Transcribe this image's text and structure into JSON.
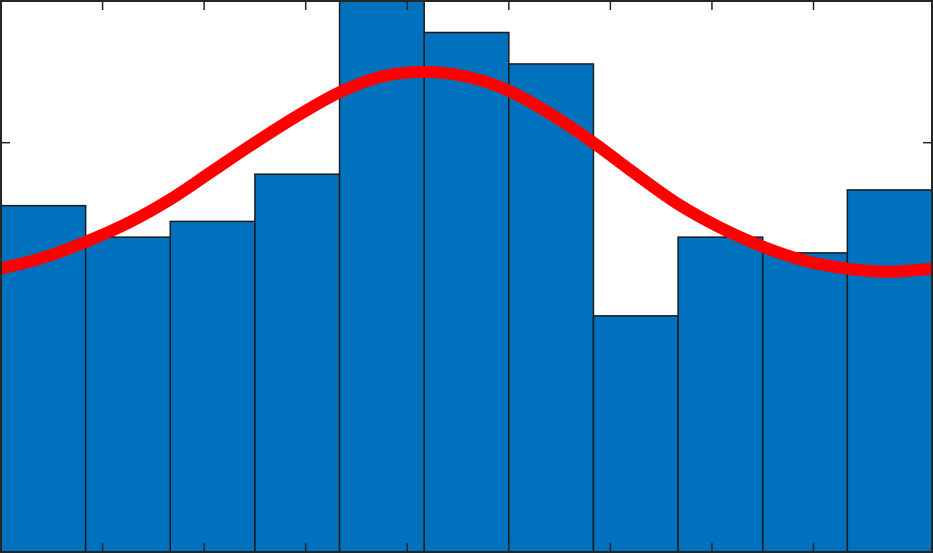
{
  "chart_data": {
    "type": "bar",
    "subtype": "histogram-with-fitted-curve",
    "title": "",
    "xlabel": "",
    "ylabel": "",
    "xlim": [
      0,
      11
    ],
    "ylim": [
      0,
      35
    ],
    "grid": false,
    "legend": "none",
    "xticks": [
      1.2,
      2.4,
      3.6,
      4.8,
      6.0,
      7.2,
      8.4,
      9.6
    ],
    "yticks": [
      26
    ],
    "bar_edges": [
      0,
      1,
      2,
      3,
      4,
      5,
      6,
      7,
      8,
      9,
      10,
      11
    ],
    "values": [
      22,
      20,
      21,
      24,
      35,
      33,
      31,
      15,
      20,
      19,
      23
    ],
    "curve": {
      "type": "line",
      "x": [
        0,
        0.5,
        1,
        1.5,
        2,
        2.5,
        3,
        3.5,
        4,
        4.5,
        5,
        5.5,
        6,
        6.5,
        7,
        7.5,
        8,
        8.5,
        9,
        9.5,
        10,
        10.5,
        11
      ],
      "y": [
        18,
        18.7,
        19.7,
        20.9,
        22.4,
        24.2,
        26.0,
        27.7,
        29.2,
        30.2,
        30.5,
        30.2,
        29.3,
        27.8,
        26.0,
        24.0,
        22.1,
        20.6,
        19.4,
        18.5,
        18.0,
        17.8,
        18.0
      ]
    },
    "colors": {
      "bar_fill": "#0072BD",
      "bar_edge": "#1a1a1a",
      "curve": "#FF0000",
      "axes": "#262626"
    }
  }
}
